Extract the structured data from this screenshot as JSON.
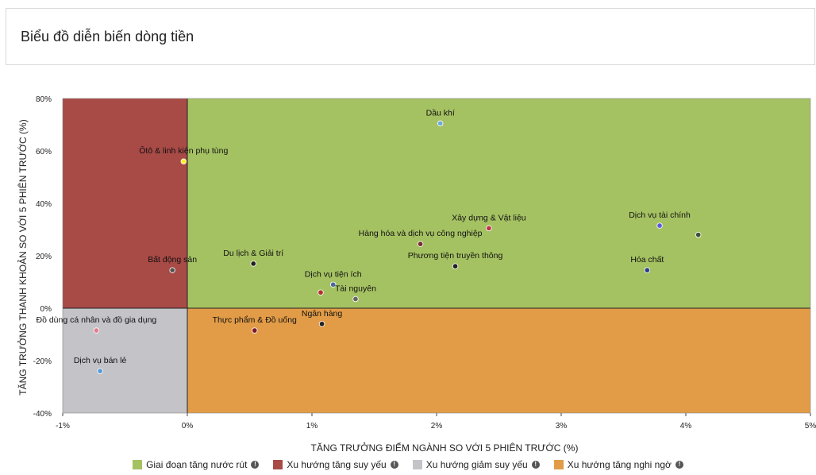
{
  "header": {
    "title": "Biểu đồ diễn biến dòng tiền"
  },
  "chart_data": {
    "type": "scatter",
    "xlabel": "TĂNG TRƯỞNG ĐIỂM NGÀNH SO VỚI 5 PHIÊN TRƯỚC (%)",
    "ylabel": "TĂNG TRƯỞNG THANH KHOẢN SO VỚI 5 PHIÊN TRƯỚC (%)",
    "xlim": [
      -1,
      5
    ],
    "ylim": [
      -40,
      80
    ],
    "xticks": [
      -1,
      0,
      1,
      2,
      3,
      4,
      5
    ],
    "xtick_labels": [
      "-1%",
      "0%",
      "1%",
      "2%",
      "3%",
      "4%",
      "5%"
    ],
    "yticks": [
      -40,
      -20,
      0,
      20,
      40,
      60,
      80
    ],
    "ytick_labels": [
      "-40%",
      "-20%",
      "0%",
      "20%",
      "40%",
      "60%",
      "80%"
    ],
    "quadrants": [
      {
        "name": "Giai đoạn tăng nước rút",
        "color": "#a5c262",
        "x": [
          0,
          5
        ],
        "y": [
          0,
          80
        ]
      },
      {
        "name": "Xu hướng tăng suy yếu",
        "color": "#a84a46",
        "x": [
          -1,
          0
        ],
        "y": [
          0,
          80
        ]
      },
      {
        "name": "Xu hướng giảm suy yếu",
        "color": "#c3c3c8",
        "x": [
          -1,
          0
        ],
        "y": [
          -40,
          0
        ]
      },
      {
        "name": "Xu hướng tăng nghi ngờ",
        "color": "#e29c47",
        "x": [
          0,
          5
        ],
        "y": [
          -40,
          0
        ]
      }
    ],
    "points": [
      {
        "label": "Dầu khí",
        "x": 2.03,
        "y": 70.5,
        "color": "#6fa8dc"
      },
      {
        "label": "Ôtô & linh kiện phụ tùng",
        "x": -0.03,
        "y": 56,
        "color": "#ffee33"
      },
      {
        "label": "Xây dựng & Vật liệu",
        "x": 2.42,
        "y": 30.5,
        "color": "#c0304a"
      },
      {
        "label": "Dịch vụ tài chính",
        "x": 3.79,
        "y": 31.5,
        "color": "#5a5adc"
      },
      {
        "label": "",
        "x": 4.1,
        "y": 28,
        "color": "#3d4f3a"
      },
      {
        "label": "Hàng hóa và dịch vụ công nghiệp",
        "x": 1.87,
        "y": 24.5,
        "color": "#7a2a3a"
      },
      {
        "label": "Phương tiện truyền thông",
        "x": 2.15,
        "y": 16,
        "color": "#222222"
      },
      {
        "label": "Hóa chất",
        "x": 3.69,
        "y": 14.5,
        "color": "#2b3e8c"
      },
      {
        "label": "Du lịch & Giải trí",
        "x": 0.53,
        "y": 17,
        "color": "#222222"
      },
      {
        "label": "Bất động sản",
        "x": -0.12,
        "y": 14.5,
        "color": "#555555"
      },
      {
        "label": "Dịch vụ tiện ích",
        "x": 1.17,
        "y": 9,
        "color": "#4a6aa0"
      },
      {
        "label": "",
        "x": 1.07,
        "y": 6,
        "color": "#b03030"
      },
      {
        "label": "Tài nguyên",
        "x": 1.35,
        "y": 3.5,
        "color": "#666666"
      },
      {
        "label": "Ngân hàng",
        "x": 1.08,
        "y": -6,
        "color": "#222222"
      },
      {
        "label": "Thực phẩm & Đồ uống",
        "x": 0.54,
        "y": -8.5,
        "color": "#7a1a2a"
      },
      {
        "label": "Đồ dùng cá nhân và đồ gia dụng",
        "x": -0.73,
        "y": -8.5,
        "color": "#e08090"
      },
      {
        "label": "Dịch vụ bán lẻ",
        "x": -0.7,
        "y": -24,
        "color": "#5b9bd5"
      }
    ]
  },
  "legend": [
    {
      "label": "Giai đoạn tăng nước rút",
      "color": "#a5c262",
      "icon": "info-icon"
    },
    {
      "label": "Xu hướng tăng suy yếu",
      "color": "#a84a46",
      "icon": "info-icon"
    },
    {
      "label": "Xu hướng giảm suy yếu",
      "color": "#c3c3c8",
      "icon": "info-icon"
    },
    {
      "label": "Xu hướng tăng nghi ngờ",
      "color": "#e29c47",
      "icon": "info-icon"
    }
  ]
}
